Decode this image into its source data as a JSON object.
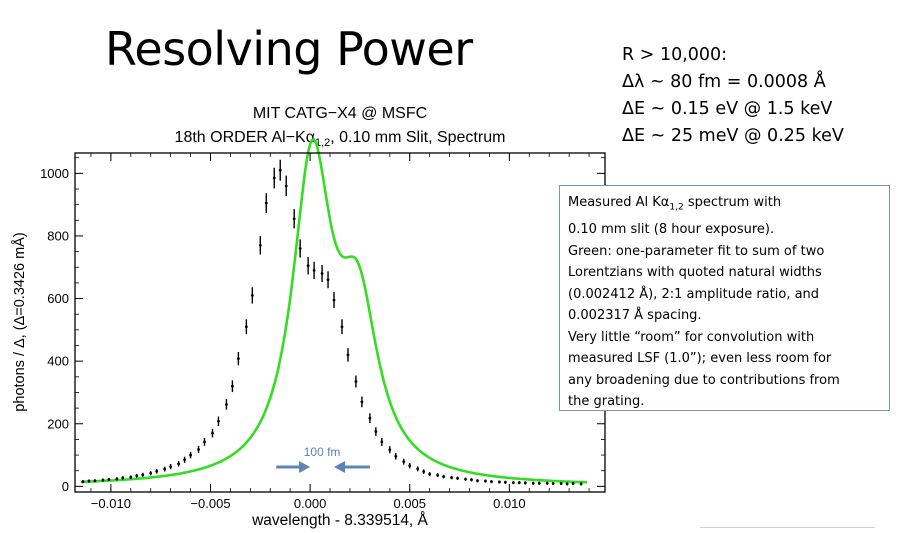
{
  "slide": {
    "title": "Resolving Power",
    "stats": [
      "R > 10,000:",
      "Δλ ~ 80 fm = 0.0008 Å",
      "ΔE ~ 0.15 eV @ 1.5 keV",
      "ΔE ~ 25 meV @ 0.25 keV"
    ],
    "note": {
      "line1_prefix": "Measured Al Kα",
      "line1_sub": "1,2",
      "line1_suffix": " spectrum with",
      "lines": [
        "0.10 mm slit (8 hour exposure).",
        "Green:  one-parameter fit to sum of two",
        "Lorentzians with quoted natural widths",
        "(0.002412 Å), 2:1 amplitude ratio, and",
        "0.002317 Å spacing.",
        "Very little “room” for convolution with",
        "measured LSF (1.0”); even less room for",
        "any broadening due to contributions from",
        "the grating."
      ]
    }
  },
  "chart_data": {
    "type": "scatter",
    "title_line1": "MIT CATG−X4 @ MSFC",
    "title_line2_prefix": "18th ORDER Al−Kα",
    "title_line2_sub": "1,2",
    "title_line2_suffix": ", 0.10 mm Slit, Spectrum",
    "xlabel": "wavelength - 8.339514, Å",
    "ylabel": "photons / Δ, (Δ=0.3426 mÅ)",
    "xlim": [
      -0.0118,
      0.0148
    ],
    "ylim": [
      -18,
      1065
    ],
    "xticks": [
      -0.01,
      -0.005,
      0.0,
      0.005,
      0.01
    ],
    "xtick_labels": [
      "−0.010",
      "−0.005",
      "0.000",
      "0.005",
      "0.010"
    ],
    "yticks": [
      0,
      200,
      400,
      600,
      800,
      1000
    ],
    "ytick_labels": [
      "0",
      "200",
      "400",
      "600",
      "800",
      "1000"
    ],
    "grid": false,
    "fit_model": {
      "name": "two-Lorentzian fit",
      "color": "#33dd22",
      "amplitude": 1000,
      "ratio": 0.5,
      "width": 0.002412,
      "spacing": 0.002317,
      "center": 0.0001,
      "baseline": 0
    },
    "series": [
      {
        "type": "points_with_error_bars",
        "x": [
          -0.0114,
          -0.0111,
          -0.0108,
          -0.0104,
          -0.0101,
          -0.0097,
          -0.0094,
          -0.009,
          -0.0087,
          -0.0084,
          -0.008,
          -0.0077,
          -0.0073,
          -0.007,
          -0.0066,
          -0.0063,
          -0.006,
          -0.0056,
          -0.0053,
          -0.0049,
          -0.0046,
          -0.0042,
          -0.0039,
          -0.0036,
          -0.0032,
          -0.0029,
          -0.0025,
          -0.0022,
          -0.0018,
          -0.0015,
          -0.0012,
          -0.0008,
          -0.0005,
          -0.0001,
          0.0002,
          0.0006,
          0.0009,
          0.0012,
          0.0016,
          0.0019,
          0.0023,
          0.0026,
          0.003,
          0.0033,
          0.0036,
          0.004,
          0.0043,
          0.0047,
          0.005,
          0.0054,
          0.0057,
          0.006,
          0.0064,
          0.0067,
          0.0071,
          0.0074,
          0.0078,
          0.0081,
          0.0084,
          0.0088,
          0.0091,
          0.0095,
          0.0098,
          0.0102,
          0.0105,
          0.0108,
          0.0112,
          0.0115,
          0.0119,
          0.0122,
          0.0126,
          0.0129,
          0.0132,
          0.0136
        ],
        "y": [
          15,
          17,
          18,
          20,
          22,
          24,
          27,
          29,
          34,
          37,
          42,
          48,
          55,
          63,
          72,
          85,
          100,
          118,
          142,
          170,
          208,
          262,
          320,
          408,
          510,
          610,
          770,
          905,
          985,
          1010,
          960,
          855,
          760,
          705,
          690,
          680,
          660,
          595,
          510,
          420,
          335,
          270,
          218,
          175,
          142,
          117,
          96,
          79,
          66,
          56,
          47,
          39,
          36,
          31,
          28,
          26,
          23,
          21,
          18,
          17,
          15,
          14,
          13,
          12,
          12,
          11,
          10,
          10,
          10,
          9,
          9,
          8,
          9,
          8
        ],
        "y_shifted": true
      }
    ],
    "annotation": {
      "label": "100 fm",
      "arrow_color": "#5b84b8",
      "left_arrow_x": [
        -0.0017,
        0.0
      ],
      "right_arrow_x": [
        0.003,
        0.0012
      ]
    }
  }
}
